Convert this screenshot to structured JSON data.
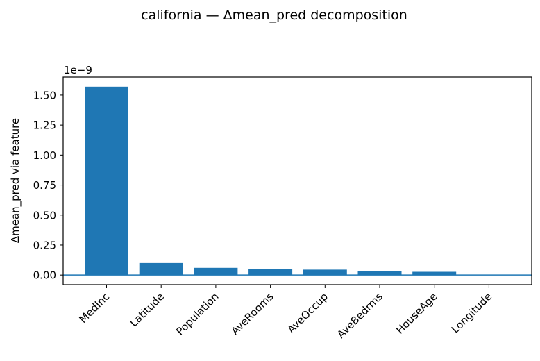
{
  "chart_data": {
    "type": "bar",
    "title": "california — Δmean_pred decomposition",
    "xlabel": "",
    "ylabel": "Δmean_pred via feature",
    "offset_label": "1e−9",
    "categories": [
      "MedInc",
      "Latitude",
      "Population",
      "AveRooms",
      "AveOccup",
      "AveBedrms",
      "HouseAge",
      "Longitude"
    ],
    "values": [
      1.57,
      0.1,
      0.06,
      0.05,
      0.045,
      0.035,
      0.027,
      0.003
    ],
    "value_scale": 1e-09,
    "ylim": [
      -0.08,
      1.65
    ],
    "yticks": [
      0.0,
      0.25,
      0.5,
      0.75,
      1.0,
      1.25,
      1.5
    ],
    "ytick_labels": [
      "0.00",
      "0.25",
      "0.50",
      "0.75",
      "1.00",
      "1.25",
      "1.50"
    ],
    "baseline": 0,
    "grid": false,
    "legend": "none",
    "bar_color": "#1f77b4",
    "baseline_color": "#1f77b4"
  }
}
